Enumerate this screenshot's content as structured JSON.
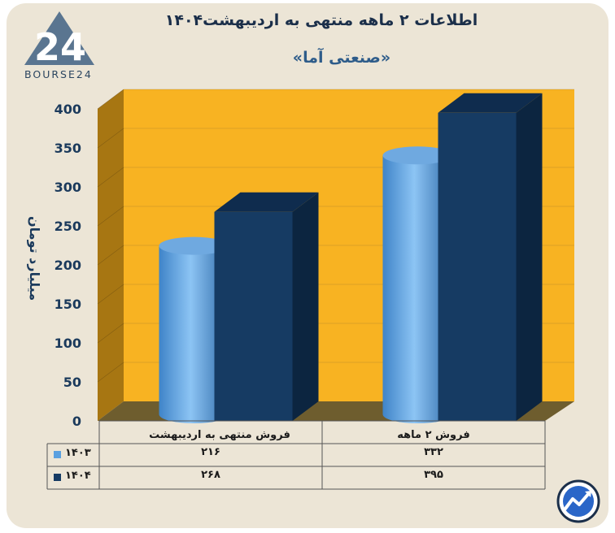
{
  "header": {
    "title": "اطلاعات ۲ ماهه منتهی به اردیبهشت۱۴۰۴",
    "subtitle": "«صنعتی آما»",
    "logo_text": "BOURSE24",
    "logo_mark": "24"
  },
  "chart_data": {
    "type": "bar",
    "title": "اطلاعات ۲ ماهه منتهی به اردیبهشت۱۴۰۴",
    "subtitle": "«صنعتی آما»",
    "ylabel": "میلیارد تومان",
    "xlabel": "",
    "ylim": [
      0,
      400
    ],
    "yticks": [
      0,
      50,
      100,
      150,
      200,
      250,
      300,
      350,
      400
    ],
    "ytick_labels": [
      "0",
      "50",
      "100",
      "150",
      "200",
      "250",
      "300",
      "350",
      "400"
    ],
    "categories": [
      "فروش منتهی به  اردیبهشت",
      "فروش ۲  ماهه"
    ],
    "series": [
      {
        "name": "۱۴۰۳",
        "values": [
          216,
          332
        ],
        "value_labels": [
          "۲۱۶",
          "۳۳۲"
        ],
        "color": "#5aa0e0",
        "shape": "cylinder"
      },
      {
        "name": "۱۴۰۴",
        "values": [
          268,
          395
        ],
        "value_labels": [
          "۲۶۸",
          "۳۹۵"
        ],
        "color": "#163b63",
        "shape": "box"
      }
    ],
    "grid": true,
    "legend": "data-table-left",
    "colors": {
      "background": "#f8b322",
      "floor": "#6e5d2e",
      "side_wall": "#a77612"
    }
  }
}
